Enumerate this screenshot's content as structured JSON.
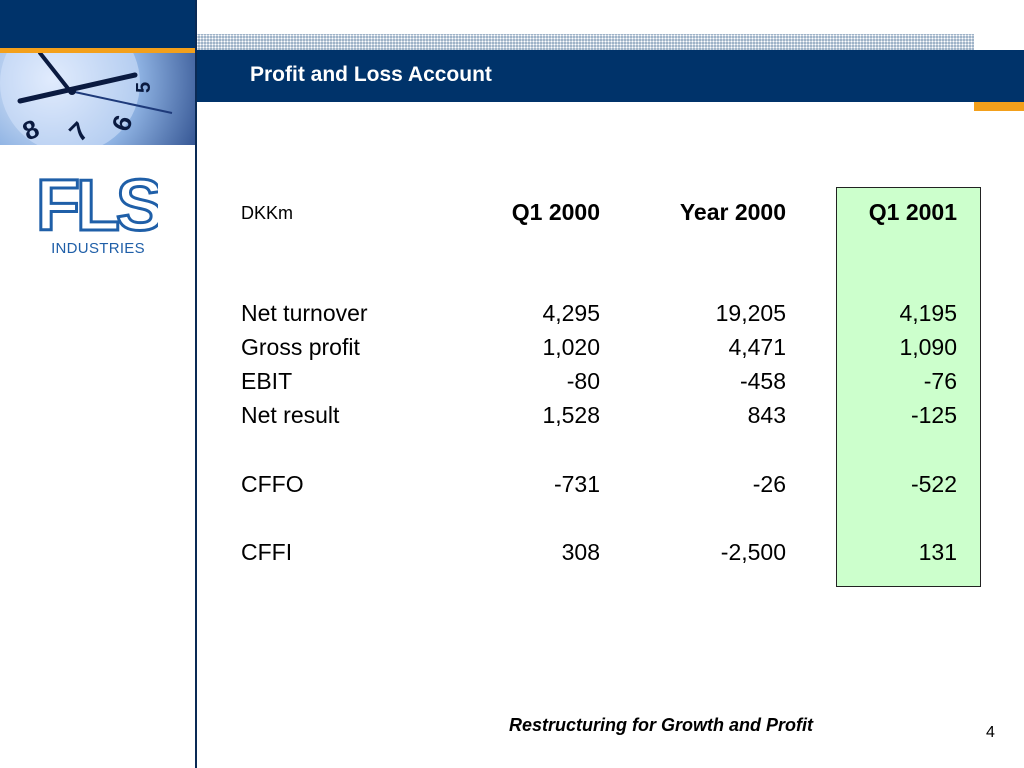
{
  "slide": {
    "title": "Profit and Loss Account",
    "footer": "Restructuring for Growth and Profit",
    "page_number": "4"
  },
  "logo": {
    "letters": "FLS",
    "subtitle": "INDUSTRIES",
    "color": "#1f5fa8"
  },
  "colors": {
    "navy": "#00336a",
    "orange": "#f3a01b",
    "highlight": "#ccffcc"
  },
  "table": {
    "unit": "DKKm",
    "columns": [
      "Q1 2000",
      "Year 2000",
      "Q1 2001"
    ],
    "rows": [
      {
        "label": "Net turnover",
        "values": [
          "4,295",
          "19,205",
          "4,195"
        ]
      },
      {
        "label": "Gross profit",
        "values": [
          "1,020",
          "4,471",
          "1,090"
        ]
      },
      {
        "label": "EBIT",
        "values": [
          "-80",
          "-458",
          "-76"
        ]
      },
      {
        "label": "Net result",
        "values": [
          "1,528",
          "843",
          "-125"
        ]
      },
      {
        "label": "CFFO",
        "values": [
          "-731",
          "-26",
          "-522"
        ]
      },
      {
        "label": "CFFI",
        "values": [
          "308",
          "-2,500",
          "131"
        ]
      }
    ]
  }
}
